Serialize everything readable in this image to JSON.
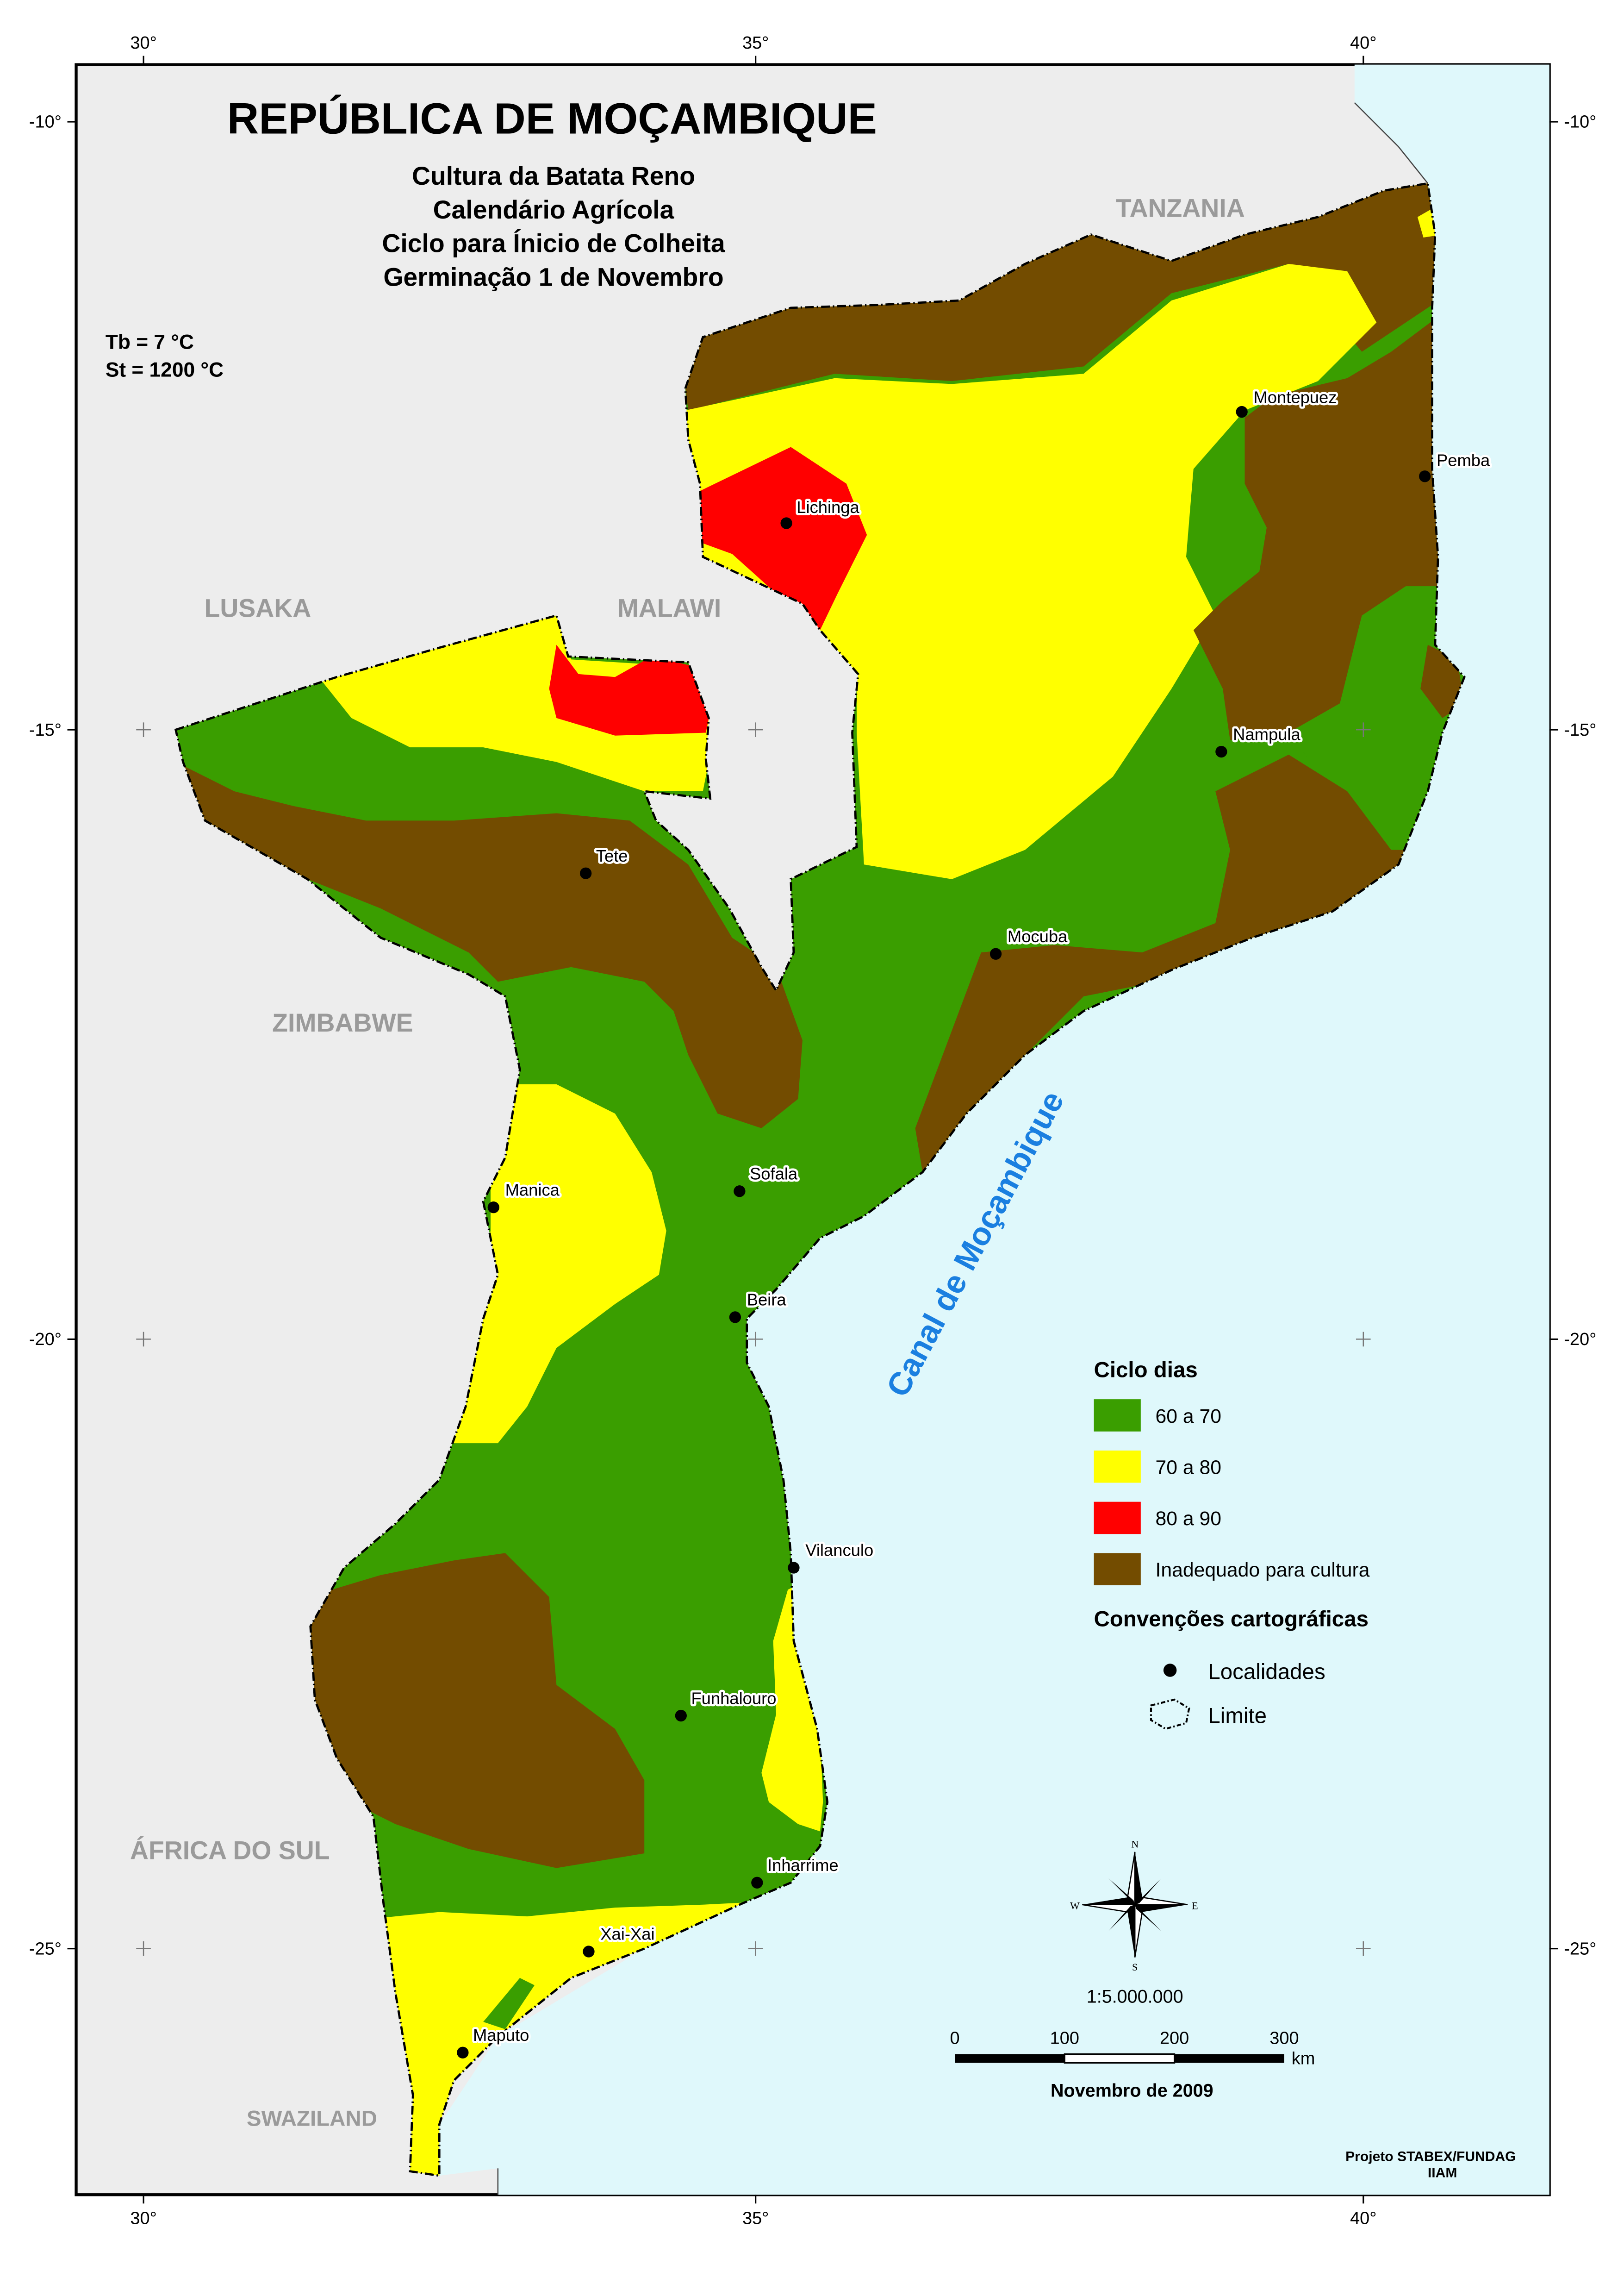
{
  "map": {
    "title": "REPÚBLICA DE MOÇAMBIQUE",
    "subtitle_lines": [
      "Cultura da Batata Reno",
      "Calendário Agrícola",
      "Ciclo para Ínicio de Colheita",
      "Germinação 1 de Novembro"
    ],
    "parameters": [
      "Tb = 7 °C",
      "St =  1200 °C"
    ],
    "sea_label": "Canal de Moçambique",
    "neighbour_labels": [
      "TANZANIA",
      "LUSAKA",
      "MALAWI",
      "ZIMBABWE",
      "ÁFRICA DO SUL",
      "SWAZILAND"
    ],
    "localities": [
      "Montepuez",
      "Pemba",
      "Lichinga",
      "Nampula",
      "Tete",
      "Mocuba",
      "Sofala",
      "Manica",
      "Beira",
      "Vilanculo",
      "Funhalouro",
      "Inharrime",
      "Xai-Xai",
      "Maputo"
    ],
    "grid": {
      "longitudes": [
        "30°",
        "35°",
        "40°"
      ],
      "latitudes": [
        "-10°",
        "-15°",
        "-20°",
        "-25°"
      ]
    }
  },
  "legend": {
    "title": "Ciclo dias",
    "classes": [
      {
        "label": "60 a 70",
        "color": "#3a9e00"
      },
      {
        "label": "70 a 80",
        "color": "#ffff00"
      },
      {
        "label": "80 a 90",
        "color": "#ff0000"
      },
      {
        "label": "Inadequado para cultura",
        "color": "#734c00"
      }
    ],
    "conventions_title": "Convenções cartográficas",
    "conventions": [
      "Localidades",
      "Limite"
    ]
  },
  "compass": {
    "n": "N",
    "s": "S",
    "e": "E",
    "w": "W"
  },
  "scale": {
    "ratio": "1:5.000.000",
    "ticks": [
      "0",
      "100",
      "200",
      "300"
    ],
    "unit": "km"
  },
  "date": "Novembro de 2009",
  "credits": [
    "Projeto STABEX/FUNDAG",
    "IIAM"
  ],
  "colors": {
    "sea": "#dff8fb",
    "land_outside": "#ededed",
    "green": "#3a9e00",
    "yellow": "#ffff00",
    "red": "#ff0000",
    "brown": "#734c00"
  }
}
